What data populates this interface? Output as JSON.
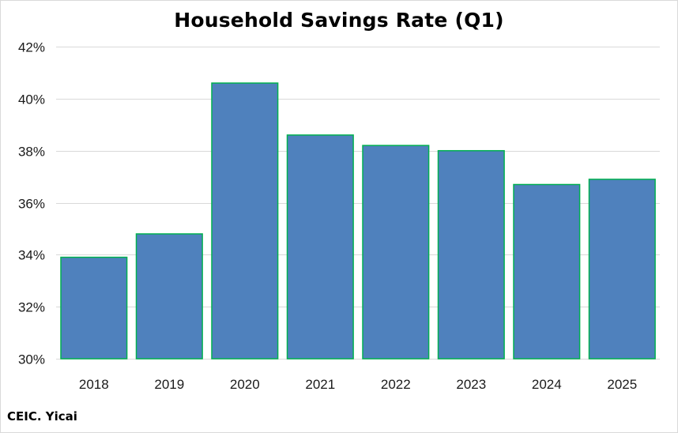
{
  "chart_data": {
    "type": "bar",
    "title": "Household Savings Rate (Q1)",
    "categories": [
      "2018",
      "2019",
      "2020",
      "2021",
      "2022",
      "2023",
      "2024",
      "2025"
    ],
    "values": [
      33.9,
      34.8,
      40.6,
      38.6,
      38.2,
      38.0,
      36.7,
      36.9
    ],
    "ylim": [
      30,
      42
    ],
    "yticks": [
      30,
      32,
      34,
      36,
      38,
      40,
      42
    ],
    "ytick_labels": [
      "30%",
      "32%",
      "34%",
      "36%",
      "38%",
      "40%",
      "42%"
    ],
    "xlabel": "",
    "ylabel": "",
    "grid": "horizontal",
    "legend": "none",
    "colors": {
      "bar_fill": "#4f81bd",
      "bar_outline": "#00b050",
      "gridline": "#d9d9d9"
    }
  },
  "source_note": "CEIC. Yicai"
}
